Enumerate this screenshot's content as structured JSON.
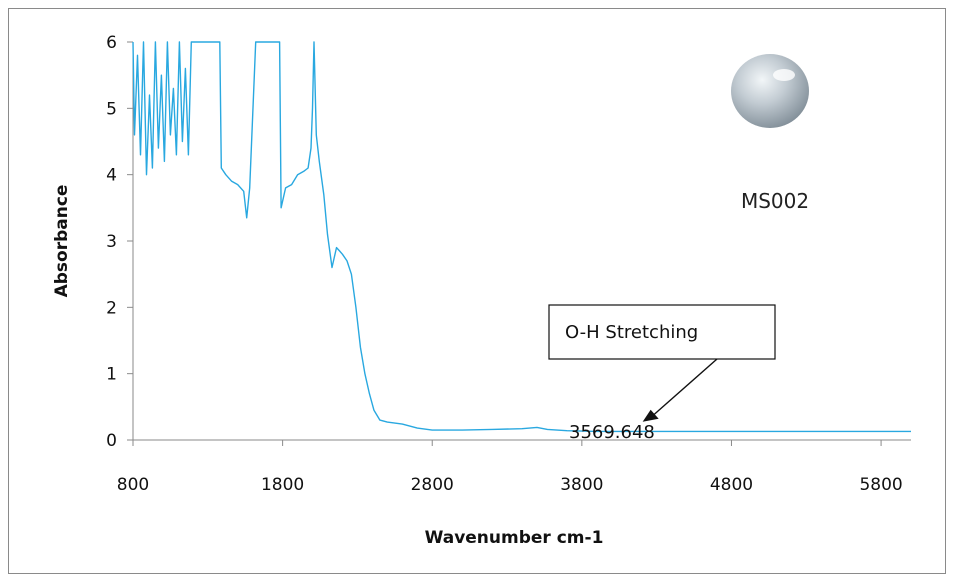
{
  "chart_data": {
    "type": "line",
    "xlabel": "Wavenumber cm-1",
    "ylabel": "Absorbance",
    "xlim": [
      800,
      6000
    ],
    "ylim": [
      0,
      6
    ],
    "x_ticks": [
      "800",
      "1800",
      "2800",
      "3800",
      "4800",
      "5800"
    ],
    "y_ticks": [
      "0",
      "1",
      "2",
      "3",
      "4",
      "5",
      "6"
    ],
    "grid": false,
    "legend": "none",
    "series": [
      {
        "color": "#29a8e0",
        "points": [
          [
            800,
            6.0
          ],
          [
            810,
            4.6
          ],
          [
            830,
            5.8
          ],
          [
            850,
            4.3
          ],
          [
            870,
            6.0
          ],
          [
            890,
            4.0
          ],
          [
            910,
            5.2
          ],
          [
            930,
            4.1
          ],
          [
            950,
            6.0
          ],
          [
            970,
            4.4
          ],
          [
            990,
            5.5
          ],
          [
            1010,
            4.2
          ],
          [
            1030,
            6.0
          ],
          [
            1050,
            4.6
          ],
          [
            1070,
            5.3
          ],
          [
            1090,
            4.3
          ],
          [
            1110,
            6.0
          ],
          [
            1130,
            4.5
          ],
          [
            1150,
            5.6
          ],
          [
            1170,
            4.3
          ],
          [
            1190,
            6.0
          ],
          [
            1200,
            6.0
          ],
          [
            1380,
            6.0
          ],
          [
            1390,
            4.1
          ],
          [
            1420,
            4.0
          ],
          [
            1460,
            3.9
          ],
          [
            1500,
            3.85
          ],
          [
            1540,
            3.75
          ],
          [
            1560,
            3.35
          ],
          [
            1580,
            3.8
          ],
          [
            1620,
            6.0
          ],
          [
            1780,
            6.0
          ],
          [
            1790,
            3.5
          ],
          [
            1820,
            3.8
          ],
          [
            1860,
            3.85
          ],
          [
            1900,
            4.0
          ],
          [
            1940,
            4.05
          ],
          [
            1970,
            4.1
          ],
          [
            1990,
            4.4
          ],
          [
            2000,
            5.0
          ],
          [
            2010,
            6.0
          ],
          [
            2025,
            4.6
          ],
          [
            2045,
            4.2
          ],
          [
            2075,
            3.7
          ],
          [
            2100,
            3.1
          ],
          [
            2130,
            2.6
          ],
          [
            2160,
            2.9
          ],
          [
            2180,
            2.85
          ],
          [
            2200,
            2.8
          ],
          [
            2230,
            2.7
          ],
          [
            2260,
            2.5
          ],
          [
            2290,
            2.0
          ],
          [
            2320,
            1.4
          ],
          [
            2350,
            1.0
          ],
          [
            2380,
            0.7
          ],
          [
            2410,
            0.45
          ],
          [
            2450,
            0.3
          ],
          [
            2500,
            0.27
          ],
          [
            2600,
            0.24
          ],
          [
            2700,
            0.18
          ],
          [
            2800,
            0.15
          ],
          [
            3000,
            0.15
          ],
          [
            3200,
            0.16
          ],
          [
            3400,
            0.17
          ],
          [
            3500,
            0.19
          ],
          [
            3570,
            0.16
          ],
          [
            3700,
            0.14
          ],
          [
            3900,
            0.13
          ],
          [
            4200,
            0.13
          ],
          [
            5000,
            0.13
          ],
          [
            6000,
            0.13
          ]
        ]
      }
    ],
    "annotations": [
      {
        "label": "O-H Stretching",
        "value_label": "3569.648",
        "arrow_to": [
          4300,
          0.35
        ]
      }
    ],
    "sample_label": "MS002"
  }
}
